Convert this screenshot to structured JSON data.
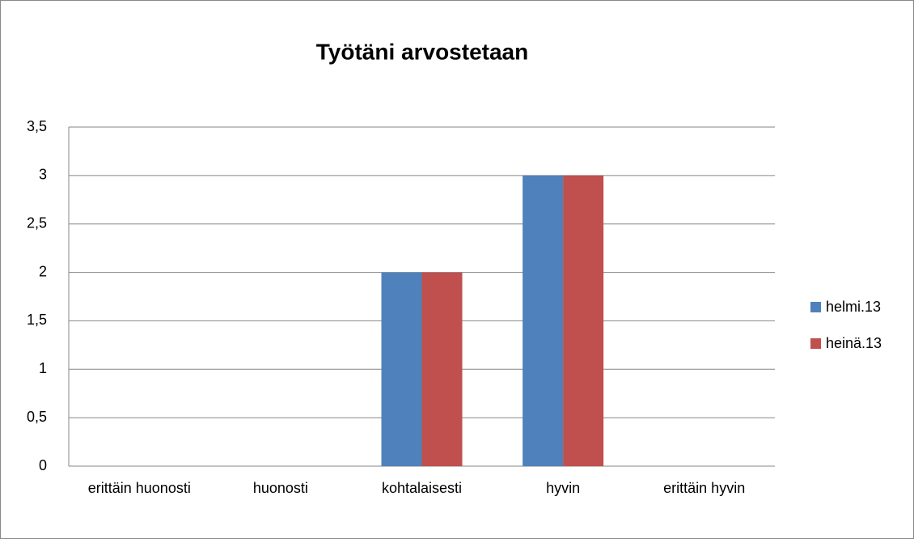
{
  "chart_data": {
    "type": "bar",
    "title": "Työtäni arvostetaan",
    "categories": [
      "erittäin huonosti",
      "huonosti",
      "kohtalaisesti",
      "hyvin",
      "erittäin hyvin"
    ],
    "series": [
      {
        "name": "helmi.13",
        "color": "#4f81bd",
        "values": [
          0,
          0,
          2,
          3,
          0
        ]
      },
      {
        "name": "heinä.13",
        "color": "#c0504d",
        "values": [
          0,
          0,
          2,
          3,
          0
        ]
      }
    ],
    "ylim": [
      0,
      3.5
    ],
    "yticks": [
      0,
      {
        "value": 0.5,
        "label": "0,5"
      },
      1,
      {
        "value": 1.5,
        "label": "1,5"
      },
      2,
      {
        "value": 2.5,
        "label": "2,5"
      },
      3,
      {
        "value": 3.5,
        "label": "3,5"
      }
    ],
    "grid": true,
    "legend": "right"
  }
}
